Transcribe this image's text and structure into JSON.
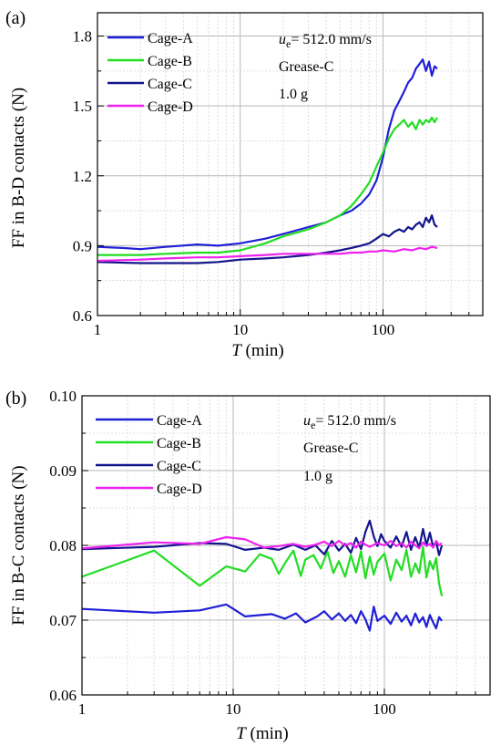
{
  "chart_data": [
    {
      "panel_label": "(a)",
      "type": "line",
      "xlabel": "T (min)",
      "xlabel_italic": "T",
      "xlabel_rest": " (min)",
      "ylabel": "FF in B-D contacts (N)",
      "xscale": "log",
      "xlim": [
        1,
        500
      ],
      "ylim": [
        0.6,
        1.9
      ],
      "xticks": [
        1,
        10,
        100
      ],
      "xtick_labels": [
        "1",
        "10",
        "100"
      ],
      "yticks": [
        0.6,
        0.9,
        1.2,
        1.5,
        1.8
      ],
      "ytick_labels": [
        "0.6",
        "0.9",
        "1.2",
        "1.5",
        "1.8"
      ],
      "grid": true,
      "legend_position": "top-left",
      "annotations": {
        "u_symbol": "u",
        "u_sub": "e",
        "u_value": "= 512.0 mm/s",
        "grease": "Grease-C",
        "mass": "1.0 g"
      },
      "series": [
        {
          "name": "Cage-A",
          "color": "#1f1fd6",
          "x": [
            1,
            1.5,
            2,
            3,
            5,
            7,
            10,
            15,
            20,
            30,
            40,
            50,
            60,
            70,
            80,
            90,
            100,
            110,
            120,
            130,
            140,
            150,
            160,
            170,
            180,
            190,
            200,
            210,
            220,
            230,
            240
          ],
          "y": [
            0.895,
            0.89,
            0.885,
            0.895,
            0.905,
            0.9,
            0.91,
            0.93,
            0.95,
            0.98,
            1.0,
            1.03,
            1.05,
            1.08,
            1.12,
            1.18,
            1.28,
            1.4,
            1.48,
            1.52,
            1.56,
            1.6,
            1.62,
            1.66,
            1.68,
            1.7,
            1.65,
            1.69,
            1.63,
            1.67,
            1.66
          ]
        },
        {
          "name": "Cage-B",
          "color": "#22dd22",
          "x": [
            1,
            2,
            3,
            5,
            7,
            10,
            15,
            20,
            30,
            40,
            50,
            60,
            70,
            80,
            90,
            100,
            110,
            120,
            130,
            140,
            150,
            160,
            170,
            180,
            190,
            200,
            210,
            220,
            230,
            240
          ],
          "y": [
            0.86,
            0.86,
            0.865,
            0.87,
            0.87,
            0.88,
            0.91,
            0.94,
            0.97,
            1.0,
            1.03,
            1.07,
            1.12,
            1.17,
            1.24,
            1.3,
            1.36,
            1.4,
            1.42,
            1.44,
            1.41,
            1.43,
            1.4,
            1.44,
            1.42,
            1.44,
            1.43,
            1.45,
            1.43,
            1.45
          ]
        },
        {
          "name": "Cage-C",
          "color": "#14148c",
          "x": [
            1,
            2,
            3,
            5,
            7,
            10,
            15,
            20,
            30,
            40,
            50,
            60,
            70,
            80,
            90,
            100,
            110,
            120,
            130,
            140,
            150,
            160,
            170,
            180,
            190,
            200,
            210,
            220,
            230,
            240
          ],
          "y": [
            0.83,
            0.825,
            0.825,
            0.825,
            0.83,
            0.84,
            0.845,
            0.85,
            0.86,
            0.87,
            0.88,
            0.89,
            0.9,
            0.91,
            0.93,
            0.95,
            0.94,
            0.96,
            0.97,
            0.96,
            0.98,
            0.97,
            0.99,
            1.0,
            0.98,
            1.02,
            1.0,
            1.03,
            0.99,
            0.98
          ]
        },
        {
          "name": "Cage-D",
          "color": "#ee22ee",
          "x": [
            1,
            2,
            3,
            5,
            7,
            10,
            15,
            20,
            30,
            40,
            50,
            60,
            70,
            80,
            90,
            100,
            120,
            140,
            160,
            180,
            200,
            220,
            240
          ],
          "y": [
            0.835,
            0.84,
            0.845,
            0.85,
            0.85,
            0.855,
            0.86,
            0.865,
            0.865,
            0.865,
            0.865,
            0.87,
            0.87,
            0.875,
            0.875,
            0.88,
            0.875,
            0.885,
            0.88,
            0.89,
            0.885,
            0.895,
            0.89
          ]
        }
      ]
    },
    {
      "panel_label": "(b)",
      "type": "line",
      "xlabel": "T (min)",
      "xlabel_italic": "T",
      "xlabel_rest": " (min)",
      "ylabel": "FF in B-C contacts (N)",
      "xscale": "log",
      "xlim": [
        1,
        500
      ],
      "ylim": [
        0.06,
        0.1
      ],
      "xticks": [
        1,
        10,
        100
      ],
      "xtick_labels": [
        "1",
        "10",
        "100"
      ],
      "yticks": [
        0.06,
        0.07,
        0.08,
        0.09,
        0.1
      ],
      "ytick_labels": [
        "0.06",
        "0.07",
        "0.08",
        "0.09",
        "0.10"
      ],
      "grid": true,
      "legend_position": "top-left",
      "annotations": {
        "u_symbol": "u",
        "u_sub": "e",
        "u_value": "= 512.0 mm/s",
        "grease": "Grease-C",
        "mass": "1.0 g"
      },
      "series": [
        {
          "name": "Cage-A",
          "color": "#1f1fd6",
          "x": [
            1,
            3,
            6,
            9,
            12,
            18,
            22,
            26,
            30,
            36,
            40,
            45,
            50,
            55,
            60,
            65,
            70,
            75,
            80,
            85,
            90,
            100,
            110,
            120,
            130,
            140,
            150,
            160,
            170,
            180,
            190,
            200,
            210,
            220,
            230,
            240
          ],
          "y": [
            0.0715,
            0.071,
            0.0713,
            0.0721,
            0.0705,
            0.0708,
            0.0702,
            0.0709,
            0.0697,
            0.0705,
            0.0712,
            0.0701,
            0.0709,
            0.0699,
            0.0707,
            0.0696,
            0.0712,
            0.0701,
            0.0686,
            0.0718,
            0.0699,
            0.0706,
            0.0695,
            0.071,
            0.0698,
            0.0706,
            0.0693,
            0.0709,
            0.0697,
            0.0704,
            0.0691,
            0.0707,
            0.0697,
            0.0689,
            0.0704,
            0.0699
          ]
        },
        {
          "name": "Cage-B",
          "color": "#22dd22",
          "x": [
            1,
            3,
            6,
            9,
            12,
            15,
            18,
            20,
            22,
            25,
            28,
            30,
            34,
            38,
            42,
            46,
            50,
            55,
            60,
            65,
            70,
            75,
            80,
            85,
            90,
            100,
            110,
            120,
            130,
            140,
            150,
            160,
            170,
            180,
            190,
            200,
            210,
            220,
            230,
            240
          ],
          "y": [
            0.0758,
            0.0793,
            0.0746,
            0.0772,
            0.0765,
            0.0788,
            0.0782,
            0.0762,
            0.0776,
            0.0793,
            0.0759,
            0.0781,
            0.0787,
            0.0769,
            0.0792,
            0.0763,
            0.0779,
            0.0758,
            0.0787,
            0.0764,
            0.0792,
            0.0756,
            0.0785,
            0.0761,
            0.0778,
            0.0789,
            0.0753,
            0.0781,
            0.0767,
            0.0794,
            0.0758,
            0.0776,
            0.0763,
            0.0798,
            0.0757,
            0.0779,
            0.0768,
            0.0783,
            0.0749,
            0.0732
          ]
        },
        {
          "name": "Cage-C",
          "color": "#14148c",
          "x": [
            1,
            3,
            6,
            9,
            12,
            16,
            20,
            25,
            30,
            35,
            40,
            45,
            50,
            55,
            60,
            65,
            70,
            75,
            80,
            85,
            90,
            95,
            100,
            110,
            120,
            130,
            140,
            150,
            160,
            170,
            180,
            190,
            200,
            210,
            220,
            230,
            240
          ],
          "y": [
            0.0795,
            0.0798,
            0.0803,
            0.0802,
            0.0794,
            0.0797,
            0.0794,
            0.0801,
            0.0794,
            0.08,
            0.0788,
            0.0806,
            0.0793,
            0.0802,
            0.079,
            0.081,
            0.0795,
            0.0818,
            0.0833,
            0.0812,
            0.0799,
            0.0815,
            0.0806,
            0.0797,
            0.0812,
            0.0798,
            0.0818,
            0.0794,
            0.0811,
            0.0797,
            0.0822,
            0.08,
            0.0817,
            0.0798,
            0.0805,
            0.0787,
            0.08
          ]
        },
        {
          "name": "Cage-D",
          "color": "#ee22ee",
          "x": [
            1,
            3,
            6,
            9,
            12,
            16,
            20,
            25,
            30,
            35,
            40,
            45,
            50,
            55,
            60,
            65,
            70,
            75,
            80,
            90,
            100,
            110,
            120,
            130,
            140,
            150,
            160,
            170,
            180,
            190,
            200,
            210,
            220,
            230,
            240
          ],
          "y": [
            0.0796,
            0.0804,
            0.0802,
            0.0811,
            0.0808,
            0.0797,
            0.0799,
            0.0802,
            0.0798,
            0.0801,
            0.0805,
            0.0799,
            0.0806,
            0.08,
            0.0803,
            0.0797,
            0.0805,
            0.0801,
            0.0798,
            0.0803,
            0.08,
            0.0806,
            0.0799,
            0.0803,
            0.0797,
            0.0805,
            0.08,
            0.0796,
            0.0804,
            0.0799,
            0.0802,
            0.0797,
            0.0806,
            0.08,
            0.0803
          ]
        }
      ]
    }
  ]
}
